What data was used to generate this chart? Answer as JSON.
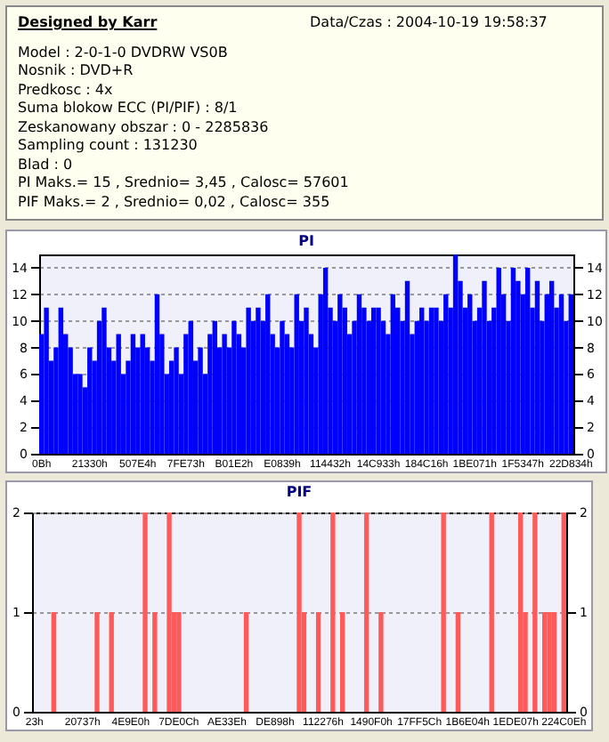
{
  "chart_data": [
    {
      "type": "other",
      "title": "Designed by Karr",
      "annotations": [
        "Data/Czas : 2004-10-19 19:58:37",
        "Model : 2-0-1-0 DVDRW VS0B",
        "Nosnik : DVD+R",
        "Predkosc : 4x",
        "Suma blokow ECC (PI/PIF) : 8/1",
        "Zeskanowany obszar : 0 - 2285836",
        "Sampling count : 131230",
        "Blad : 0",
        "PI Maks.= 15 , Srednio= 3,45 , Calosc= 57601",
        "PIF Maks.= 2 , Srednio= 0,02 , Calosc= 355"
      ]
    },
    {
      "type": "bar",
      "title": "PI",
      "categories": [
        "0Bh",
        null,
        null,
        null,
        null,
        null,
        null,
        null,
        null,
        null,
        "21330h",
        null,
        null,
        null,
        null,
        null,
        null,
        null,
        null,
        null,
        "507E4h",
        null,
        null,
        null,
        null,
        null,
        null,
        null,
        null,
        null,
        "7FE73h",
        null,
        null,
        null,
        null,
        null,
        null,
        null,
        null,
        null,
        "B01E2h",
        null,
        null,
        null,
        null,
        null,
        null,
        null,
        null,
        null,
        "E0839h",
        null,
        null,
        null,
        null,
        null,
        null,
        null,
        null,
        null,
        "114432h",
        null,
        null,
        null,
        null,
        null,
        null,
        null,
        null,
        null,
        "14C933h",
        null,
        null,
        null,
        null,
        null,
        null,
        null,
        null,
        null,
        "184C16h",
        null,
        null,
        null,
        null,
        null,
        null,
        null,
        null,
        null,
        "1BE071h",
        null,
        null,
        null,
        null,
        null,
        null,
        null,
        null,
        null,
        "1F5347h",
        null,
        null,
        null,
        null,
        null,
        null,
        null,
        null,
        null,
        "22D834h"
      ],
      "series": [
        {
          "color": "#0000ff",
          "values": [
            9,
            11,
            7,
            8,
            11,
            9,
            8,
            6,
            6,
            5,
            8,
            7,
            10,
            11,
            8,
            7,
            9,
            6,
            7,
            9,
            8,
            9,
            8,
            7,
            12,
            9,
            6,
            7,
            8,
            6,
            9,
            10,
            7,
            8,
            6,
            9,
            10,
            8,
            9,
            8,
            10,
            9,
            8,
            11,
            10,
            11,
            10,
            12,
            9,
            8,
            10,
            9,
            8,
            12,
            10,
            11,
            9,
            8,
            12,
            14,
            11,
            10,
            12,
            11,
            9,
            10,
            12,
            11,
            10,
            11,
            11,
            10,
            9,
            12,
            11,
            10,
            13,
            9,
            10,
            11,
            10,
            11,
            11,
            10,
            12,
            11,
            15,
            13,
            11,
            12,
            10,
            11,
            13,
            10,
            11,
            14,
            12,
            10,
            14,
            13,
            12,
            14,
            11,
            13,
            10,
            12,
            13,
            11,
            12,
            10,
            12
          ]
        }
      ],
      "ylim": [
        0,
        15
      ],
      "yticks": [
        0,
        2,
        4,
        6,
        8,
        10,
        12,
        14
      ],
      "y2lim": [
        0,
        15
      ],
      "y2ticks": [
        0,
        2,
        4,
        6,
        8,
        10,
        12,
        14
      ],
      "grid": "y"
    },
    {
      "type": "bar",
      "title": "PIF",
      "categories": [
        "23h",
        null,
        null,
        null,
        null,
        null,
        null,
        null,
        null,
        null,
        "20737h",
        null,
        null,
        null,
        null,
        null,
        null,
        null,
        null,
        null,
        "4E9E0h",
        null,
        null,
        null,
        null,
        null,
        null,
        null,
        null,
        null,
        "7DE0Ch",
        null,
        null,
        null,
        null,
        null,
        null,
        null,
        null,
        null,
        "AE33Eh",
        null,
        null,
        null,
        null,
        null,
        null,
        null,
        null,
        null,
        "DE898h",
        null,
        null,
        null,
        null,
        null,
        null,
        null,
        null,
        null,
        "112276h",
        null,
        null,
        null,
        null,
        null,
        null,
        null,
        null,
        null,
        "1490F0h",
        null,
        null,
        null,
        null,
        null,
        null,
        null,
        null,
        null,
        "17FF5Ch",
        null,
        null,
        null,
        null,
        null,
        null,
        null,
        null,
        null,
        "1B6E04h",
        null,
        null,
        null,
        null,
        null,
        null,
        null,
        null,
        null,
        "1EDE07h",
        null,
        null,
        null,
        null,
        null,
        null,
        null,
        null,
        null,
        "224C0Eh"
      ],
      "series": [
        {
          "color": "#ff5a5a",
          "values": [
            0,
            0,
            0,
            0,
            1,
            0,
            0,
            0,
            0,
            0,
            0,
            0,
            0,
            1,
            0,
            0,
            1,
            0,
            0,
            0,
            0,
            0,
            0,
            2,
            0,
            1,
            0,
            0,
            2,
            1,
            1,
            0,
            0,
            0,
            0,
            0,
            0,
            0,
            0,
            0,
            0,
            0,
            0,
            0,
            1,
            0,
            0,
            0,
            0,
            0,
            0,
            0,
            0,
            0,
            0,
            2,
            1,
            0,
            0,
            1,
            0,
            0,
            2,
            0,
            1,
            0,
            0,
            0,
            0,
            2,
            0,
            0,
            1,
            0,
            0,
            0,
            0,
            0,
            0,
            0,
            0,
            0,
            0,
            0,
            0,
            2,
            0,
            0,
            1,
            0,
            0,
            0,
            0,
            0,
            0,
            2,
            0,
            0,
            0,
            0,
            0,
            2,
            1,
            0,
            2,
            0,
            1,
            1,
            1,
            0,
            2
          ]
        }
      ],
      "ylim": [
        0,
        2
      ],
      "yticks": [
        0,
        1,
        2
      ],
      "y2lim": [
        0,
        2
      ],
      "y2ticks": [
        0,
        1,
        2
      ],
      "grid": "y"
    }
  ]
}
